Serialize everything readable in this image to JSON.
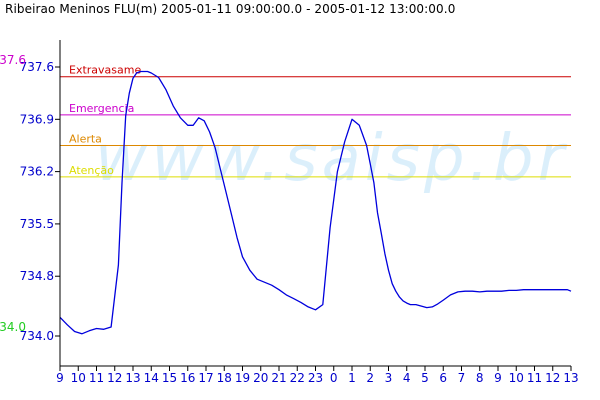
{
  "title": "Ribeirao Meninos FLU(m) 2005-01-11 09:00:00.0 - 2005-01-12 13:00:00.0",
  "watermark": "www.saisp.br",
  "colors": {
    "axis": "#000000",
    "series": "#0000dd",
    "tick_text": "#0000cc",
    "extravasamento": "#cc0000",
    "emergencia": "#cc00cc",
    "alerta": "#dd8800",
    "atencao": "#dddd00",
    "max_label": "#cc00cc",
    "min_label": "#22cc22",
    "watermark": "#bfe3f8"
  },
  "chart_data": {
    "type": "line",
    "title": "Ribeirao Meninos FLU(m) 2005-01-11 09:00:00.0 - 2005-01-12 13:00:00.0",
    "xlabel": "",
    "ylabel": "",
    "x_tick_labels": [
      "9",
      "10",
      "11",
      "12",
      "13",
      "14",
      "15",
      "16",
      "17",
      "18",
      "19",
      "20",
      "21",
      "22",
      "23",
      "0",
      "1",
      "2",
      "3",
      "4",
      "5",
      "6",
      "7",
      "8",
      "9",
      "10",
      "11",
      "12",
      "13"
    ],
    "xlim": [
      0,
      28
    ],
    "y_ticks": [
      "734.0",
      "734.8",
      "735.5",
      "736.2",
      "736.9",
      "737.6"
    ],
    "ylim": [
      734.0,
      737.6
    ],
    "grid": false,
    "max_label": "737.6",
    "min_label": "734.0",
    "thresholds": [
      {
        "label": "Extravasame",
        "value": 737.47
      },
      {
        "label": "Emergencia",
        "value": 736.96
      },
      {
        "label": "Alerta",
        "value": 736.55
      },
      {
        "label": "Atenção",
        "value": 736.13
      }
    ],
    "series": [
      {
        "x": [
          0,
          0.4,
          0.8,
          1.2,
          1.6,
          2.0,
          2.4,
          2.8,
          3.2,
          3.4,
          3.6,
          3.8,
          4.0,
          4.2,
          4.4,
          4.6,
          4.8,
          5.0,
          5.4,
          5.8,
          6.2,
          6.6,
          7.0,
          7.3,
          7.6,
          7.9,
          8.2,
          8.5,
          8.8,
          9.1,
          9.4,
          9.7,
          10.0,
          10.4,
          10.8,
          11.2,
          11.6,
          12.0,
          12.4,
          12.8,
          13.2,
          13.6,
          14.0,
          14.4,
          14.8,
          15.2,
          15.6,
          16.0,
          16.4,
          16.8,
          17.0,
          17.2,
          17.4,
          17.6,
          17.8,
          18.0,
          18.2,
          18.4,
          18.6,
          18.8,
          19.0,
          19.2,
          19.5,
          19.8,
          20.1,
          20.4,
          20.7,
          21.0,
          21.4,
          21.8,
          22.2,
          22.6,
          23.0,
          23.4,
          23.8,
          24.2,
          24.6,
          25.0,
          25.4,
          25.8,
          26.2,
          26.6,
          27.0,
          27.4,
          27.8,
          28.0
        ],
        "y": [
          734.25,
          734.15,
          734.06,
          734.03,
          734.07,
          734.1,
          734.09,
          734.12,
          734.95,
          736.05,
          736.95,
          737.25,
          737.45,
          737.52,
          737.54,
          737.54,
          737.54,
          737.52,
          737.46,
          737.3,
          737.08,
          736.92,
          736.82,
          736.82,
          736.92,
          736.88,
          736.73,
          736.52,
          736.22,
          735.92,
          735.62,
          735.32,
          735.06,
          734.88,
          734.76,
          734.72,
          734.68,
          734.62,
          734.55,
          734.5,
          734.45,
          734.39,
          734.35,
          734.42,
          735.45,
          736.2,
          736.6,
          736.9,
          736.82,
          736.55,
          736.3,
          736.05,
          735.65,
          735.38,
          735.1,
          734.88,
          734.7,
          734.6,
          734.52,
          734.47,
          734.44,
          734.42,
          734.42,
          734.4,
          734.38,
          734.39,
          734.43,
          734.48,
          734.55,
          734.59,
          734.6,
          734.6,
          734.59,
          734.6,
          734.6,
          734.6,
          734.61,
          734.61,
          734.62,
          734.62,
          734.62,
          734.62,
          734.62,
          734.62,
          734.62,
          734.6
        ]
      }
    ]
  }
}
